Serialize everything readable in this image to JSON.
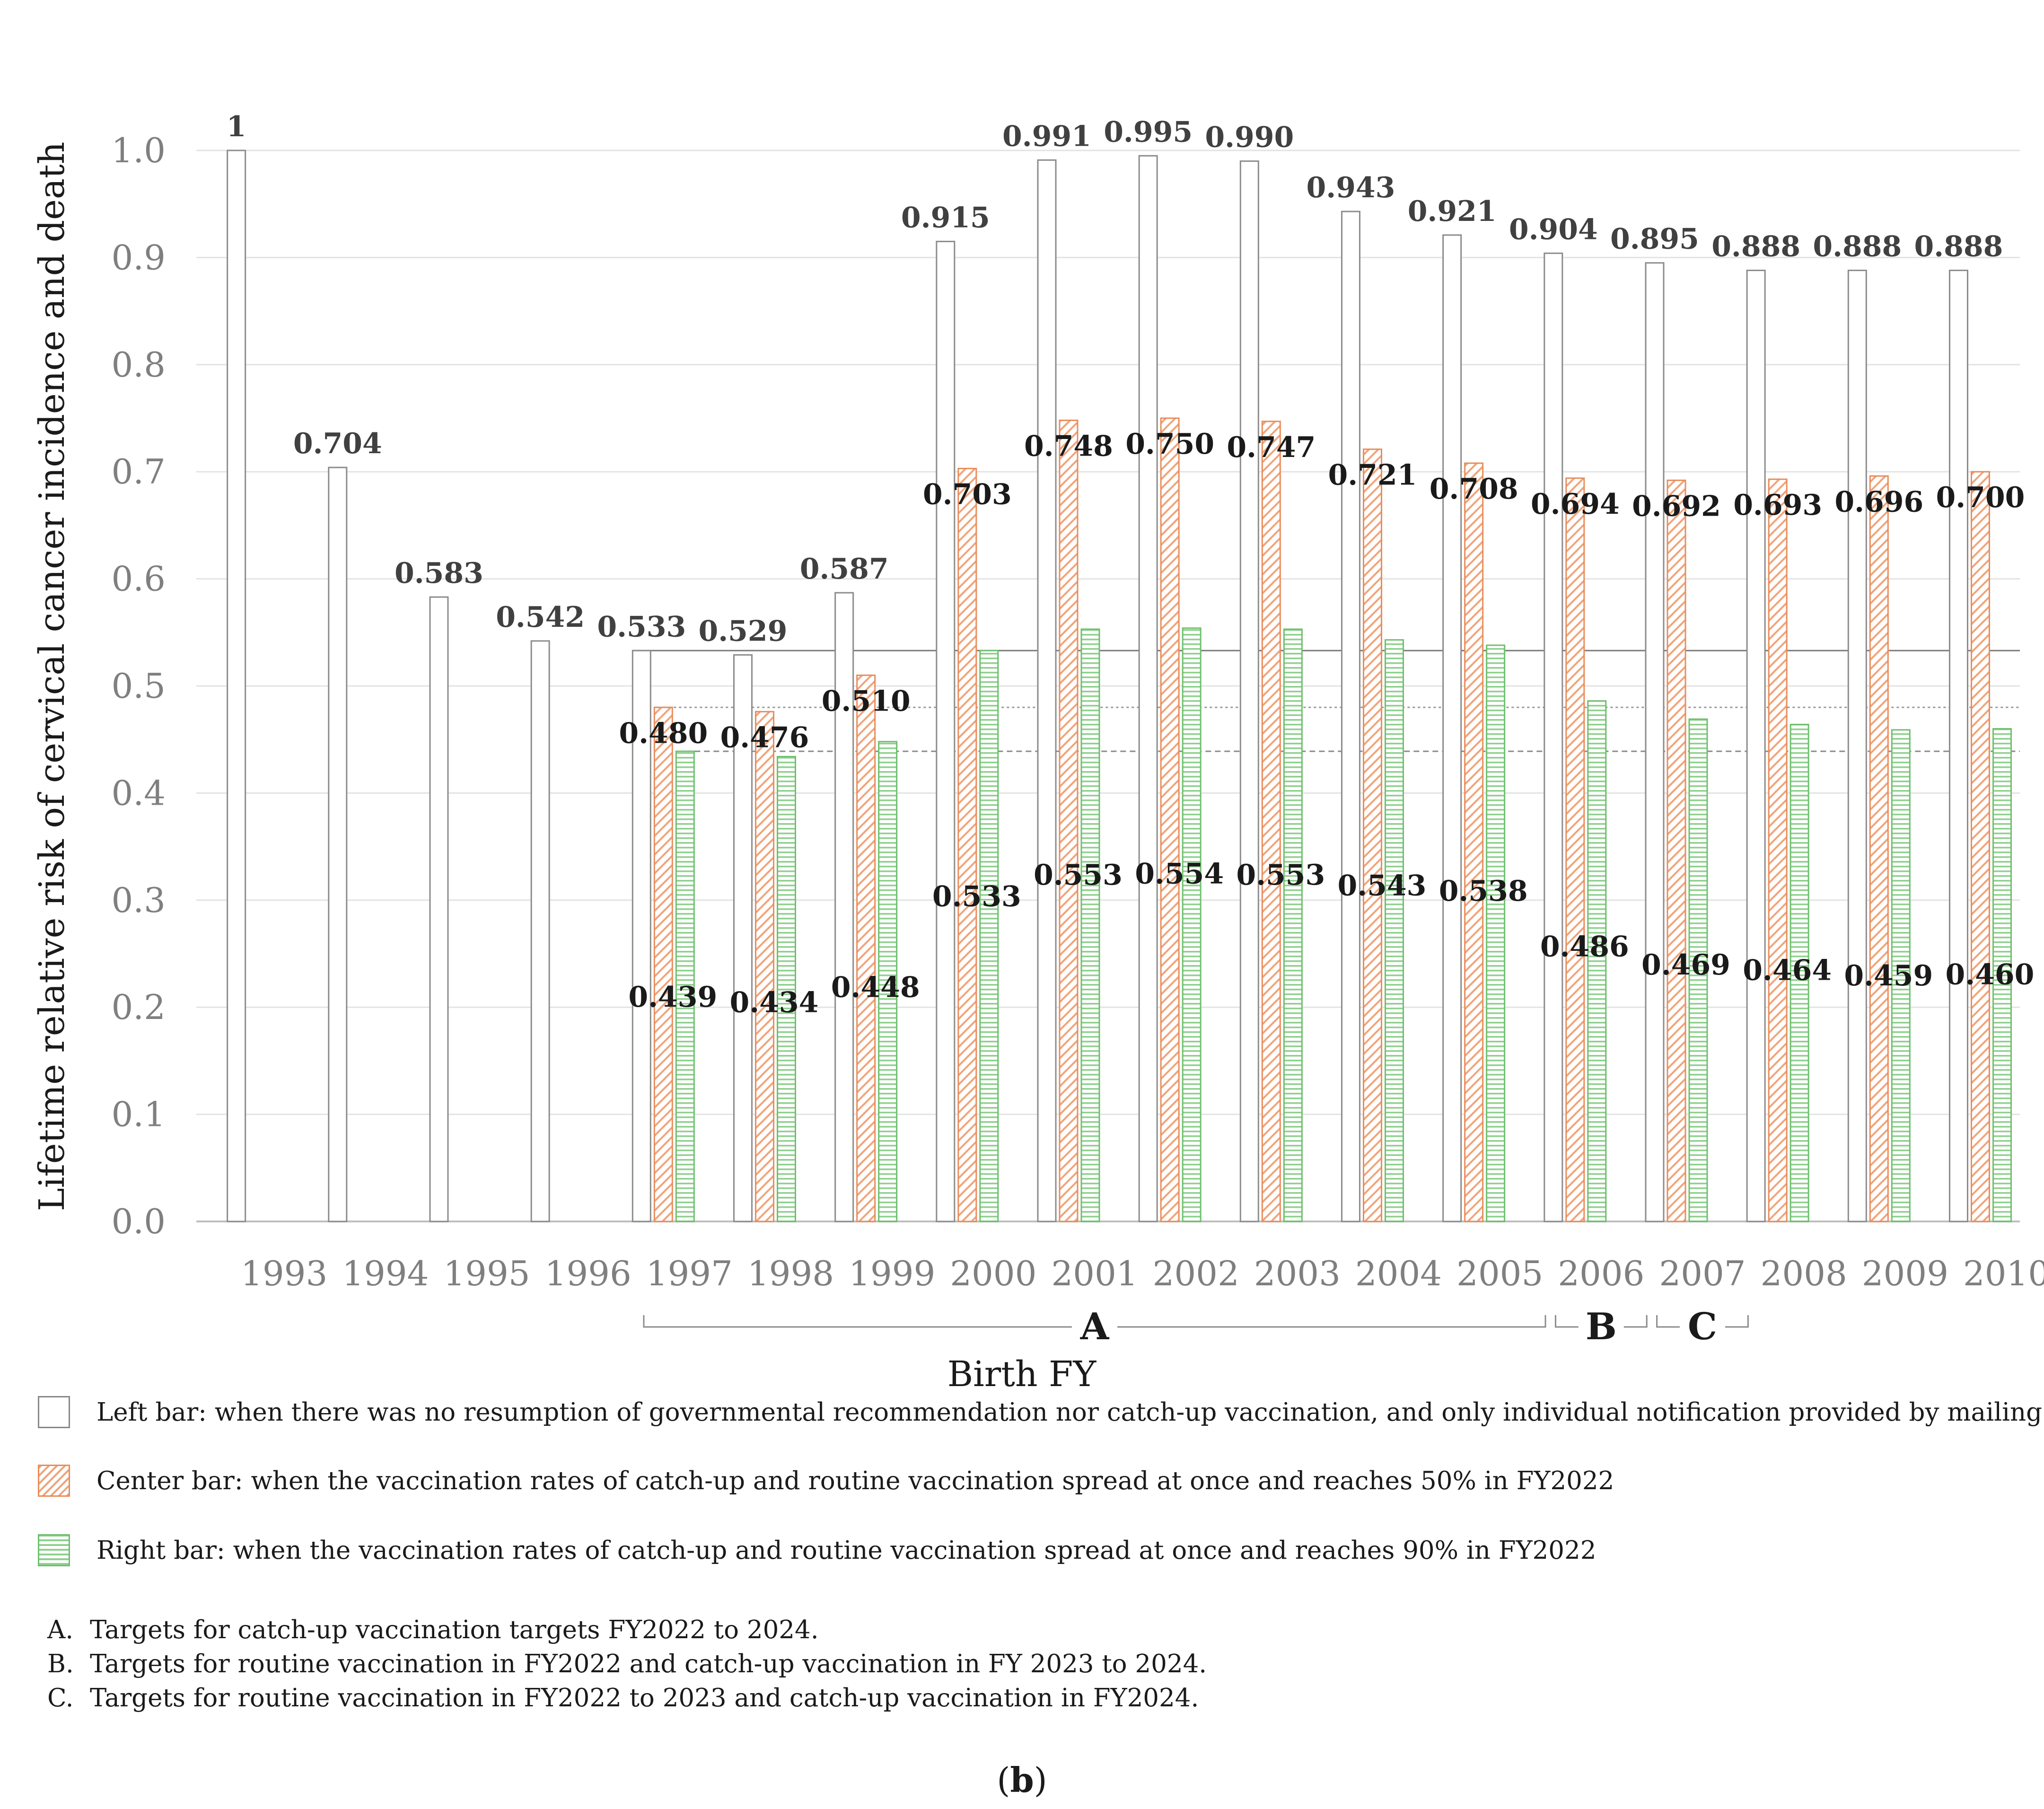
{
  "chart_data": {
    "type": "bar",
    "ylabel": "Lifetime relative risk of cervical cancer incidence and death",
    "xlabel": "Birth FY",
    "ylim": [
      0,
      1.0
    ],
    "yticks": [
      "0.0",
      "0.1",
      "0.2",
      "0.3",
      "0.4",
      "0.5",
      "0.6",
      "0.7",
      "0.8",
      "0.9",
      "1.0"
    ],
    "categories": [
      "1993",
      "1994",
      "1995",
      "1996",
      "1997",
      "1998",
      "1999",
      "2000",
      "2001",
      "2002",
      "2003",
      "2004",
      "2005",
      "2006",
      "2007",
      "2008",
      "2009",
      "2010"
    ],
    "series": [
      {
        "name": "Left bar",
        "color": "#ffffff",
        "values": [
          1,
          0.704,
          0.583,
          0.542,
          0.533,
          0.529,
          0.587,
          0.915,
          0.991,
          0.995,
          0.99,
          0.943,
          0.921,
          0.904,
          0.895,
          0.888,
          0.888,
          0.888
        ],
        "labels": [
          "1",
          "0.704",
          "0.583",
          "0.542",
          "0.533",
          "0.529",
          "0.587",
          "0.915",
          "0.991",
          "0.995",
          "0.990",
          "0.943",
          "0.921",
          "0.904",
          "0.895",
          "0.888",
          "0.888",
          "0.888"
        ]
      },
      {
        "name": "Center bar",
        "color": "#f0a47a",
        "values": [
          null,
          null,
          null,
          null,
          0.48,
          0.476,
          0.51,
          0.703,
          0.748,
          0.75,
          0.747,
          0.721,
          0.708,
          0.694,
          0.692,
          0.693,
          0.696,
          0.7
        ],
        "labels": [
          "",
          "",
          "",
          "",
          "0.480",
          "0.476",
          "0.510",
          "0.703",
          "0.748",
          "0.750",
          "0.747",
          "0.721",
          "0.708",
          "0.694",
          "0.692",
          "0.693",
          "0.696",
          "0.700"
        ]
      },
      {
        "name": "Right bar",
        "color": "#8fd08f",
        "values": [
          null,
          null,
          null,
          null,
          0.439,
          0.434,
          0.448,
          0.533,
          0.553,
          0.554,
          0.553,
          0.543,
          0.538,
          0.486,
          0.469,
          0.464,
          0.459,
          0.46
        ],
        "labels": [
          "",
          "",
          "",
          "",
          "0.439",
          "0.434",
          "0.448",
          "0.533",
          "0.553",
          "0.554",
          "0.553",
          "0.543",
          "0.538",
          "0.486",
          "0.469",
          "0.464",
          "0.459",
          "0.460"
        ]
      }
    ],
    "reference_lines": [
      0.533,
      0.48,
      0.439
    ],
    "groups": [
      {
        "letter": "A",
        "from": "1997",
        "to": "2005"
      },
      {
        "letter": "B",
        "from": "2006",
        "to": "2006"
      },
      {
        "letter": "C",
        "from": "2007",
        "to": "2007"
      }
    ]
  },
  "legend": [
    {
      "swatch": "white",
      "text": "Left bar: when there was no resumption of governmental recommendation nor catch-up vaccination, and only individual notification provided by mailing."
    },
    {
      "swatch": "orange",
      "text": "Center bar: when the vaccination rates of catch-up and routine vaccination spread at once and reaches 50% in FY2022"
    },
    {
      "swatch": "green",
      "text": "Right bar: when the vaccination rates of catch-up and routine vaccination spread at once and reaches 90% in FY2022"
    }
  ],
  "notes": [
    {
      "mark": "A.",
      "text": "Targets for catch-up vaccination targets FY2022 to 2024."
    },
    {
      "mark": "B.",
      "text": "Targets for routine vaccination in FY2022 and catch-up vaccination in FY 2023 to 2024."
    },
    {
      "mark": "C.",
      "text": "Targets for routine vaccination in FY2022 to 2023 and catch-up vaccination in FY2024."
    }
  ],
  "panel": {
    "open": "(",
    "letter": "b",
    "close": ")"
  }
}
